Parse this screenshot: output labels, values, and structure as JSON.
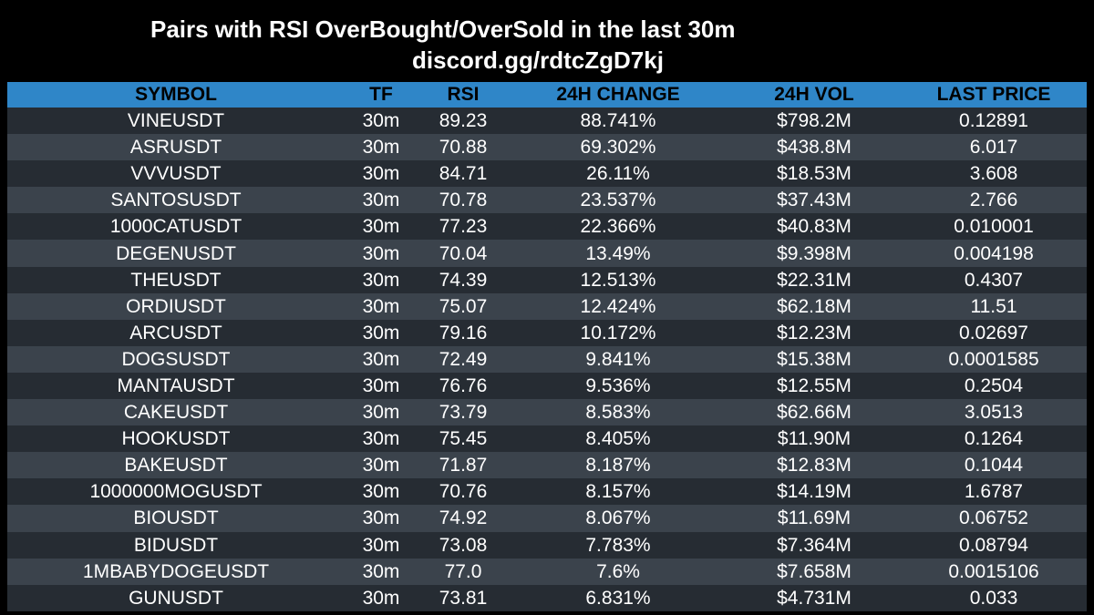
{
  "header": {
    "title": "Pairs with RSI OverBought/OverSold in the last 30m",
    "subtitle": "discord.gg/rdtcZgD7kj"
  },
  "table": {
    "columns": [
      "SYMBOL",
      "TF",
      "RSI",
      "24H CHANGE",
      "24H VOL",
      "LAST PRICE"
    ],
    "rows": [
      [
        "VINEUSDT",
        "30m",
        "89.23",
        "88.741%",
        "$798.2M",
        "0.12891"
      ],
      [
        "ASRUSDT",
        "30m",
        "70.88",
        "69.302%",
        "$438.8M",
        "6.017"
      ],
      [
        "VVVUSDT",
        "30m",
        "84.71",
        "26.11%",
        "$18.53M",
        "3.608"
      ],
      [
        "SANTOSUSDT",
        "30m",
        "70.78",
        "23.537%",
        "$37.43M",
        "2.766"
      ],
      [
        "1000CATUSDT",
        "30m",
        "77.23",
        "22.366%",
        "$40.83M",
        "0.010001"
      ],
      [
        "DEGENUSDT",
        "30m",
        "70.04",
        "13.49%",
        "$9.398M",
        "0.004198"
      ],
      [
        "THEUSDT",
        "30m",
        "74.39",
        "12.513%",
        "$22.31M",
        "0.4307"
      ],
      [
        "ORDIUSDT",
        "30m",
        "75.07",
        "12.424%",
        "$62.18M",
        "11.51"
      ],
      [
        "ARCUSDT",
        "30m",
        "79.16",
        "10.172%",
        "$12.23M",
        "0.02697"
      ],
      [
        "DOGSUSDT",
        "30m",
        "72.49",
        "9.841%",
        "$15.38M",
        "0.0001585"
      ],
      [
        "MANTAUSDT",
        "30m",
        "76.76",
        "9.536%",
        "$12.55M",
        "0.2504"
      ],
      [
        "CAKEUSDT",
        "30m",
        "73.79",
        "8.583%",
        "$62.66M",
        "3.0513"
      ],
      [
        "HOOKUSDT",
        "30m",
        "75.45",
        "8.405%",
        "$11.90M",
        "0.1264"
      ],
      [
        "BAKEUSDT",
        "30m",
        "71.87",
        "8.187%",
        "$12.83M",
        "0.1044"
      ],
      [
        "1000000MOGUSDT",
        "30m",
        "70.76",
        "8.157%",
        "$14.19M",
        "1.6787"
      ],
      [
        "BIOUSDT",
        "30m",
        "74.92",
        "8.067%",
        "$11.69M",
        "0.06752"
      ],
      [
        "BIDUSDT",
        "30m",
        "73.08",
        "7.783%",
        "$7.364M",
        "0.08794"
      ],
      [
        "1MBABYDOGEUSDT",
        "30m",
        "77.0",
        "7.6%",
        "$7.658M",
        "0.0015106"
      ],
      [
        "GUNUSDT",
        "30m",
        "73.81",
        "6.831%",
        "$4.731M",
        "0.033"
      ]
    ]
  },
  "colors": {
    "header_bg": "#2f86c8",
    "row_odd": "#262c33",
    "row_even": "#3b434c",
    "background": "#000000"
  }
}
